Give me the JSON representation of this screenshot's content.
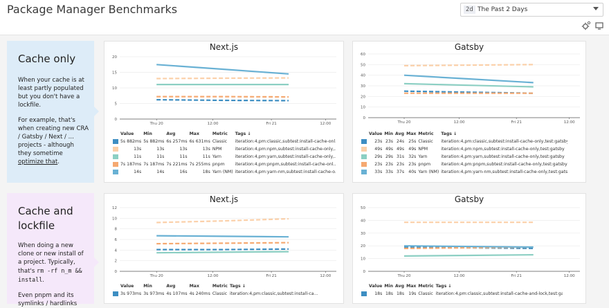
{
  "header": {
    "title": "Package Manager Benchmarks",
    "time_badge": "2d",
    "time_label": "The Past 2 Days"
  },
  "sections": [
    {
      "id": "cache-only",
      "note_title": "Cache only",
      "note_p1": "When your cache is at least partly populated but you don't have a lockfile.",
      "note_p2_a": "For example, that's when creating new CRA / Gatsby / Next / ... projects - although they sometime ",
      "note_p2_link": "optimize that",
      "note_p2_b": "."
    },
    {
      "id": "cache-and-lockfile",
      "note_title": "Cache and lockfile",
      "note_p1_a": "When doing a new clone or new install of a project. Typically, that's ",
      "note_p1_code": "rm -rf n_m && install",
      "note_p1_b": ".",
      "note_p2": "Even pnpm and its symlinks / hardlinks"
    }
  ],
  "colors": {
    "Classic": "#3d8ec2",
    "NPM": "#fbd0a9",
    "Yarn": "#8ccfc3",
    "pnpm": "#f5a971",
    "Yarn (NM)": "#69b1d4"
  },
  "table_headers": {
    "value": "Value",
    "min": "Min",
    "avg": "Avg",
    "max": "Max",
    "metric": "Metric",
    "tags": "Tags ↓"
  },
  "chart_data": [
    {
      "type": "line",
      "title": "Next.js",
      "section": "cache-only",
      "x_ticks": [
        "Thu 20",
        "12:00",
        "Fri 21",
        "12:00"
      ],
      "ylim": [
        0,
        20
      ],
      "y_ticks": [
        0,
        5,
        10,
        15,
        20
      ],
      "series": [
        {
          "name": "Classic",
          "style": "dashed",
          "values": [
            6.2,
            6.0,
            5.9
          ]
        },
        {
          "name": "NPM",
          "style": "dashed",
          "values": [
            13.0,
            13.1,
            13.2
          ]
        },
        {
          "name": "Yarn",
          "style": "solid",
          "values": [
            11.1,
            11.1,
            11.1
          ]
        },
        {
          "name": "pnpm",
          "style": "dashed",
          "values": [
            7.2,
            7.2,
            7.1
          ]
        },
        {
          "name": "Yarn (NM)",
          "style": "solid",
          "values": [
            17.5,
            16.0,
            14.5
          ]
        }
      ],
      "rows": [
        {
          "metric": "Classic",
          "value": "5s 882ms",
          "min": "5s 882ms",
          "avg": "6s 257ms",
          "max": "6s 631ms",
          "tags": "iteration:4,pm:classic,subtest:install-cache-onl..."
        },
        {
          "metric": "NPM",
          "value": "13s",
          "min": "13s",
          "avg": "13s",
          "max": "13s",
          "tags": "iteration:4,pm:npm,subtest:install-cache-only,..."
        },
        {
          "metric": "Yarn",
          "value": "11s",
          "min": "11s",
          "avg": "11s",
          "max": "11s",
          "tags": "iteration:4,pm:yarn,subtest:install-cache-only,..."
        },
        {
          "metric": "pnpm",
          "value": "7s 187ms",
          "min": "7s 187ms",
          "avg": "7s 221ms",
          "max": "7s 255ms",
          "tags": "iteration:4,pm:pnpm,subtest:install-cache-onl..."
        },
        {
          "metric": "Yarn (NM)",
          "value": "14s",
          "min": "14s",
          "avg": "16s",
          "max": "18s",
          "tags": "iteration:4,pm:yarn-nm,subtest:install-cache-o..."
        }
      ]
    },
    {
      "type": "line",
      "title": "Gatsby",
      "section": "cache-only",
      "x_ticks": [
        "Thu 20",
        "12:00",
        "Fri 21",
        "12:00"
      ],
      "ylim": [
        0,
        60
      ],
      "y_ticks": [
        0,
        10,
        20,
        30,
        40,
        50,
        60
      ],
      "series": [
        {
          "name": "Classic",
          "style": "dashed",
          "values": [
            25,
            24,
            23
          ]
        },
        {
          "name": "NPM",
          "style": "dashed",
          "values": [
            49,
            49.5,
            50
          ]
        },
        {
          "name": "Yarn",
          "style": "solid",
          "values": [
            32,
            30.5,
            29
          ]
        },
        {
          "name": "pnpm",
          "style": "dashed",
          "values": [
            23,
            23,
            23
          ]
        },
        {
          "name": "Yarn (NM)",
          "style": "solid",
          "values": [
            40,
            36.5,
            33
          ]
        }
      ],
      "rows": [
        {
          "metric": "Classic",
          "value": "23s",
          "min": "23s",
          "avg": "24s",
          "max": "25s",
          "tags": "iteration:4,pm:classic,subtest:install-cache-only,test:gatsby"
        },
        {
          "metric": "NPM",
          "value": "49s",
          "min": "49s",
          "avg": "49s",
          "max": "49s",
          "tags": "iteration:4,pm:npm,subtest:install-cache-only,test:gatsby"
        },
        {
          "metric": "Yarn",
          "value": "29s",
          "min": "29s",
          "avg": "31s",
          "max": "32s",
          "tags": "iteration:4,pm:yarn,subtest:install-cache-only,test:gatsby"
        },
        {
          "metric": "pnpm",
          "value": "23s",
          "min": "23s",
          "avg": "23s",
          "max": "23s",
          "tags": "iteration:4,pm:pnpm,subtest:install-cache-only,test:gatsby"
        },
        {
          "metric": "Yarn (NM)",
          "value": "33s",
          "min": "33s",
          "avg": "37s",
          "max": "40s",
          "tags": "iteration:4,pm:yarn-nm,subtest:install-cache-only,test:gatsby"
        }
      ]
    },
    {
      "type": "line",
      "title": "Next.js",
      "section": "cache-and-lockfile",
      "x_ticks": [
        "Thu 20",
        "12:00",
        "Fri 21",
        "12:00"
      ],
      "ylim": [
        0,
        12
      ],
      "y_ticks": [
        0,
        2,
        4,
        6,
        8,
        10,
        12
      ],
      "series": [
        {
          "name": "Classic",
          "style": "dashed",
          "values": [
            4.1,
            4.1,
            4.2
          ]
        },
        {
          "name": "NPM",
          "style": "dashed",
          "values": [
            9.2,
            9.5,
            9.9
          ]
        },
        {
          "name": "Yarn",
          "style": "solid",
          "values": [
            3.5,
            3.6,
            3.7
          ]
        },
        {
          "name": "pnpm",
          "style": "dashed",
          "values": [
            5.2,
            5.3,
            5.4
          ]
        },
        {
          "name": "Yarn (NM)",
          "style": "solid",
          "values": [
            6.7,
            6.6,
            6.5
          ]
        }
      ],
      "rows": [
        {
          "metric": "Classic",
          "value": "3s 973ms",
          "min": "3s 973ms",
          "avg": "4s 107ms",
          "max": "4s 240ms",
          "tags": "iteration:4,pm:classic,subtest:install-ca..."
        }
      ]
    },
    {
      "type": "line",
      "title": "Gatsby",
      "section": "cache-and-lockfile",
      "x_ticks": [
        "Thu 20",
        "12:00",
        "Fri 21",
        "12:00"
      ],
      "ylim": [
        0,
        50
      ],
      "y_ticks": [
        0,
        10,
        20,
        30,
        40,
        50
      ],
      "series": [
        {
          "name": "Classic",
          "style": "dashed",
          "values": [
            19,
            18.5,
            18
          ]
        },
        {
          "name": "NPM",
          "style": "dashed",
          "values": [
            38.5,
            38.5,
            38.5
          ]
        },
        {
          "name": "Yarn",
          "style": "solid",
          "values": [
            12,
            12.5,
            13
          ]
        },
        {
          "name": "pnpm",
          "style": "dashed",
          "values": [
            18,
            18.5,
            19
          ]
        },
        {
          "name": "Yarn (NM)",
          "style": "solid",
          "values": [
            20,
            19.5,
            19
          ]
        }
      ],
      "rows": [
        {
          "metric": "Classic",
          "value": "18s",
          "min": "18s",
          "avg": "18s",
          "max": "19s",
          "tags": "iteration:4,pm:classic,subtest:install-cache-and-lock,test:gatsby"
        }
      ]
    }
  ]
}
